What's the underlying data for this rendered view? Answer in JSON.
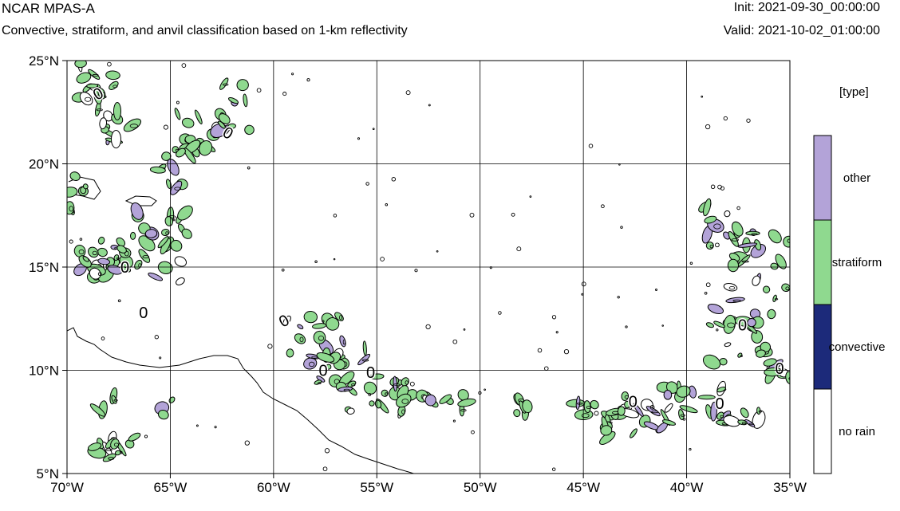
{
  "header": {
    "title": "NCAR MPAS-A",
    "subtitle": "Convective, stratiform, and anvil classification based on 1-km reflectivity",
    "init": "Init: 2021-09-30_00:00:00",
    "valid": "Valid: 2021-10-02_01:00:00"
  },
  "map": {
    "lon_range": [
      -70,
      -35
    ],
    "lat_range": [
      5,
      25
    ],
    "lon_ticks": [
      {
        "value": -70,
        "label": "70°W"
      },
      {
        "value": -65,
        "label": "65°W"
      },
      {
        "value": -60,
        "label": "60°W"
      },
      {
        "value": -55,
        "label": "55°W"
      },
      {
        "value": -50,
        "label": "50°W"
      },
      {
        "value": -45,
        "label": "45°W"
      },
      {
        "value": -40,
        "label": "40°W"
      },
      {
        "value": -35,
        "label": "35°W"
      }
    ],
    "lat_ticks": [
      {
        "value": 25,
        "label": "25°N"
      },
      {
        "value": 20,
        "label": "20°N"
      },
      {
        "value": 15,
        "label": "15°N"
      },
      {
        "value": 10,
        "label": "10°N"
      },
      {
        "value": 5,
        "label": "5°N"
      }
    ],
    "contour_label": "0",
    "colors": {
      "other": "#b3a3d8",
      "stratiform": "#8fd98f",
      "convective": "#1c2a7a",
      "no_rain": "#ffffff"
    }
  },
  "legend": {
    "title": "[type]",
    "items": [
      {
        "label": "other",
        "color": "#b3a3d8"
      },
      {
        "label": "stratiform",
        "color": "#8fd98f"
      },
      {
        "label": "convective",
        "color": "#1c2a7a"
      },
      {
        "label": "no rain",
        "color": "#ffffff"
      }
    ]
  }
}
